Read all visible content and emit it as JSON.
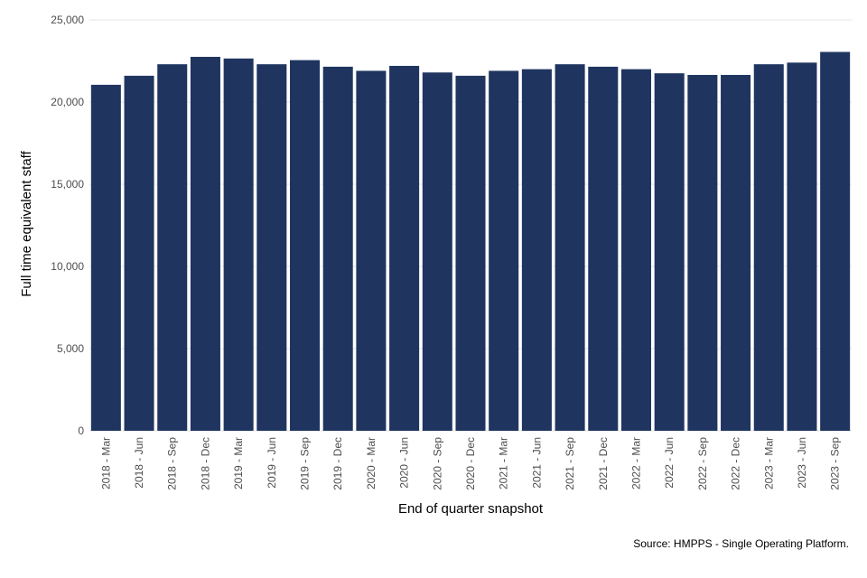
{
  "chart_data": {
    "type": "bar",
    "title": "",
    "xlabel": "End of quarter snapshot",
    "ylabel": "Full time equivalent staff",
    "ylim": [
      0,
      25000
    ],
    "yticks": [
      0,
      5000,
      10000,
      15000,
      20000,
      25000
    ],
    "ytick_labels": [
      "0",
      "5,000",
      "10,000",
      "15,000",
      "20,000",
      "25,000"
    ],
    "grid": true,
    "legend": "none",
    "categories": [
      "2018 - Mar",
      "2018 - Jun",
      "2018 - Sep",
      "2018 - Dec",
      "2019 - Mar",
      "2019 - Jun",
      "2019 - Sep",
      "2019 - Dec",
      "2020 - Mar",
      "2020 - Jun",
      "2020 - Sep",
      "2020 - Dec",
      "2021 - Mar",
      "2021 - Jun",
      "2021 - Sep",
      "2021 - Dec",
      "2022 - Mar",
      "2022 - Jun",
      "2022 - Sep",
      "2022 - Dec",
      "2023 - Mar",
      "2023 - Jun",
      "2023 - Sep"
    ],
    "values": [
      21050,
      21600,
      22300,
      22750,
      22650,
      22300,
      22550,
      22150,
      21900,
      22200,
      21800,
      21600,
      21900,
      22000,
      22300,
      22150,
      22000,
      21750,
      21650,
      21650,
      22300,
      22400,
      23050
    ],
    "bar_color": "#1f3560",
    "source": "Source: HMPPS - Single Operating Platform."
  }
}
